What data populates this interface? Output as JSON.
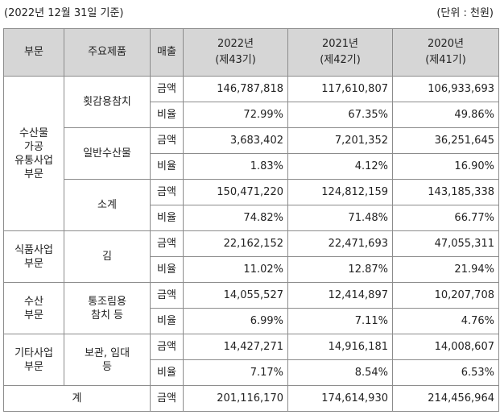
{
  "caption": {
    "left": "(2022년 12월 31일 기준)",
    "right": "(단위 : 천원)"
  },
  "header": {
    "c1": "부문",
    "c2": "주요제품",
    "c3": "매출",
    "c4a": "2022년",
    "c4b": "(제43기)",
    "c5a": "2021년",
    "c5b": "(제42기)",
    "c6a": "2020년",
    "c6b": "(제41기)"
  },
  "division1": {
    "name": [
      "수산물",
      "가공",
      "유통사업",
      "부문"
    ]
  },
  "division2": {
    "name": [
      "식품사업",
      "부문"
    ]
  },
  "division3": {
    "name": [
      "수산",
      "부문"
    ]
  },
  "division4": {
    "name": [
      "기타사업",
      "부문"
    ]
  },
  "labels": {
    "amount": "금액",
    "ratio": "비율",
    "total": "계"
  },
  "rows": {
    "tuna": {
      "product": "횟감용참치",
      "amount": [
        "146,787,818",
        "117,610,807",
        "106,933,693"
      ],
      "ratio": [
        "72.99%",
        "67.35%",
        "49.86%"
      ]
    },
    "general": {
      "product": "일반수산물",
      "amount": [
        "3,683,402",
        "7,201,352",
        "36,251,645"
      ],
      "ratio": [
        "1.83%",
        "4.12%",
        "16.90%"
      ]
    },
    "subtotal": {
      "product": "소계",
      "amount": [
        "150,471,220",
        "124,812,159",
        "143,185,338"
      ],
      "ratio": [
        "74.82%",
        "71.48%",
        "66.77%"
      ]
    },
    "laver": {
      "product": "김",
      "amount": [
        "22,162,152",
        "22,471,693",
        "47,055,311"
      ],
      "ratio": [
        "11.02%",
        "12.87%",
        "21.94%"
      ]
    },
    "canned": {
      "product": [
        "통조림용",
        "참치 등"
      ],
      "amount": [
        "14,055,527",
        "12,414,897",
        "10,207,708"
      ],
      "ratio": [
        "6.99%",
        "7.11%",
        "4.76%"
      ]
    },
    "other": {
      "product": [
        "보관, 임대",
        "등"
      ],
      "amount": [
        "14,427,271",
        "14,916,181",
        "14,008,607"
      ],
      "ratio": [
        "7.17%",
        "8.54%",
        "6.53%"
      ]
    },
    "total": {
      "amount": [
        "201,116,170",
        "174,614,930",
        "214,456,964"
      ]
    }
  }
}
